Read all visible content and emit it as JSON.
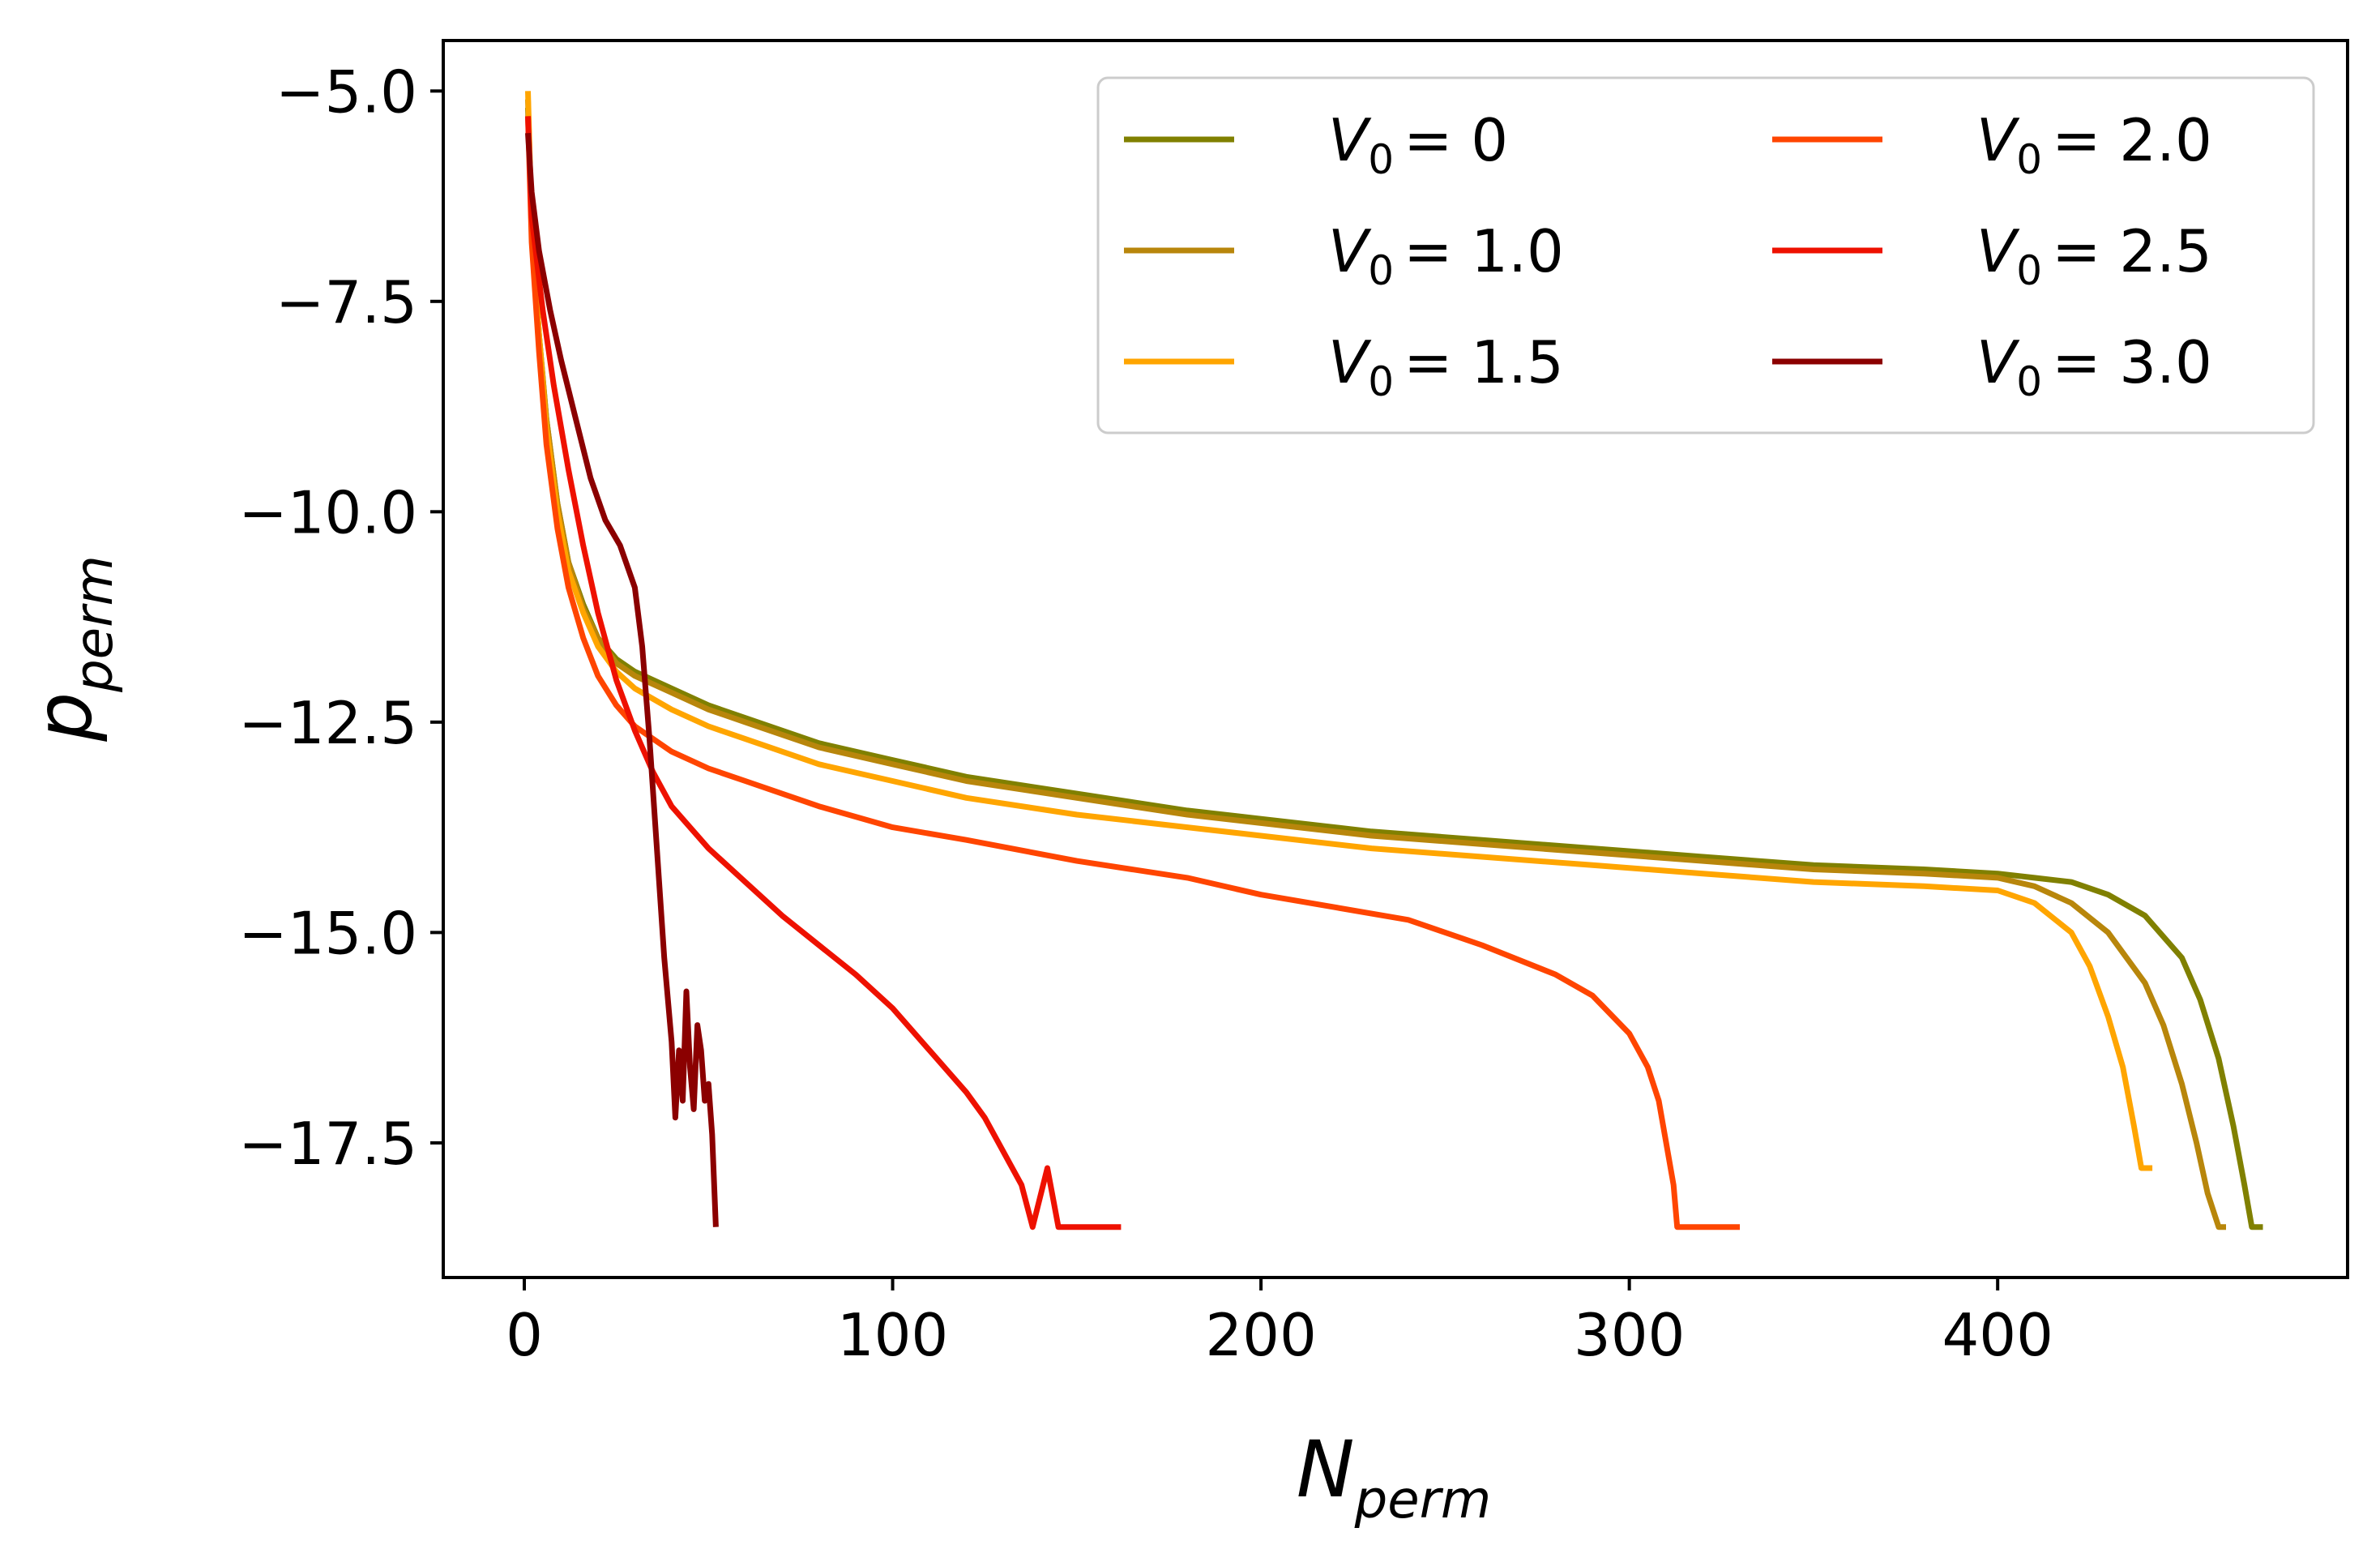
{
  "chart_data": {
    "type": "line",
    "title": "",
    "xlabel": "N",
    "xlabel_sub": "perm",
    "ylabel": "p",
    "ylabel_sub": "perm",
    "xlim": [
      -22,
      495
    ],
    "ylim": [
      -19.1,
      -4.4
    ],
    "xticks": [
      0,
      100,
      200,
      300,
      400
    ],
    "xtick_labels": [
      "0",
      "100",
      "200",
      "300",
      "400"
    ],
    "yticks": [
      -5.0,
      -7.5,
      -10.0,
      -12.5,
      -15.0,
      -17.5
    ],
    "ytick_labels": [
      "−5.0",
      "−7.5",
      "−10.0",
      "−12.5",
      "−15.0",
      "−17.5"
    ],
    "grid": false,
    "legend_position": "top-right",
    "legend_columns": 2,
    "series": [
      {
        "name": "V0 = 0",
        "label_var": "V",
        "label_sub": "0",
        "label_value": "= 0",
        "color": "#808000",
        "points": [
          [
            1,
            -5.2
          ],
          [
            2,
            -6.6
          ],
          [
            4,
            -7.9
          ],
          [
            6,
            -8.9
          ],
          [
            9,
            -9.9
          ],
          [
            12,
            -10.6
          ],
          [
            16,
            -11.1
          ],
          [
            20,
            -11.5
          ],
          [
            25,
            -11.75
          ],
          [
            30,
            -11.9
          ],
          [
            40,
            -12.1
          ],
          [
            50,
            -12.3
          ],
          [
            60,
            -12.45
          ],
          [
            80,
            -12.75
          ],
          [
            100,
            -12.95
          ],
          [
            120,
            -13.15
          ],
          [
            150,
            -13.35
          ],
          [
            180,
            -13.55
          ],
          [
            200,
            -13.65
          ],
          [
            230,
            -13.8
          ],
          [
            260,
            -13.9
          ],
          [
            290,
            -14.0
          ],
          [
            320,
            -14.1
          ],
          [
            350,
            -14.2
          ],
          [
            380,
            -14.25
          ],
          [
            400,
            -14.3
          ],
          [
            410,
            -14.35
          ],
          [
            420,
            -14.4
          ],
          [
            430,
            -14.55
          ],
          [
            440,
            -14.8
          ],
          [
            450,
            -15.3
          ],
          [
            455,
            -15.8
          ],
          [
            460,
            -16.5
          ],
          [
            464,
            -17.3
          ],
          [
            467,
            -18.0
          ],
          [
            469,
            -18.5
          ],
          [
            472,
            -18.5
          ]
        ]
      },
      {
        "name": "V0 = 1.0",
        "label_var": "V",
        "label_sub": "0",
        "label_value": "= 1.0",
        "color": "#b8860b",
        "points": [
          [
            1,
            -5.1
          ],
          [
            2,
            -6.6
          ],
          [
            4,
            -7.9
          ],
          [
            6,
            -8.9
          ],
          [
            9,
            -9.9
          ],
          [
            12,
            -10.6
          ],
          [
            16,
            -11.15
          ],
          [
            20,
            -11.5
          ],
          [
            25,
            -11.8
          ],
          [
            30,
            -11.95
          ],
          [
            40,
            -12.15
          ],
          [
            50,
            -12.35
          ],
          [
            60,
            -12.5
          ],
          [
            80,
            -12.8
          ],
          [
            100,
            -13.0
          ],
          [
            120,
            -13.2
          ],
          [
            150,
            -13.4
          ],
          [
            180,
            -13.6
          ],
          [
            200,
            -13.7
          ],
          [
            230,
            -13.85
          ],
          [
            260,
            -13.95
          ],
          [
            290,
            -14.05
          ],
          [
            320,
            -14.15
          ],
          [
            350,
            -14.25
          ],
          [
            380,
            -14.3
          ],
          [
            400,
            -14.35
          ],
          [
            410,
            -14.45
          ],
          [
            420,
            -14.65
          ],
          [
            430,
            -15.0
          ],
          [
            440,
            -15.6
          ],
          [
            445,
            -16.1
          ],
          [
            450,
            -16.8
          ],
          [
            454,
            -17.5
          ],
          [
            457,
            -18.1
          ],
          [
            460,
            -18.5
          ],
          [
            462,
            -18.5
          ]
        ]
      },
      {
        "name": "V0 = 1.5",
        "label_var": "V",
        "label_sub": "0",
        "label_value": "= 1.5",
        "color": "#ffa500",
        "points": [
          [
            1,
            -5.0
          ],
          [
            2,
            -6.6
          ],
          [
            4,
            -7.9
          ],
          [
            6,
            -9.0
          ],
          [
            9,
            -10.0
          ],
          [
            12,
            -10.7
          ],
          [
            16,
            -11.2
          ],
          [
            20,
            -11.6
          ],
          [
            25,
            -11.9
          ],
          [
            30,
            -12.1
          ],
          [
            40,
            -12.35
          ],
          [
            50,
            -12.55
          ],
          [
            60,
            -12.7
          ],
          [
            80,
            -13.0
          ],
          [
            100,
            -13.2
          ],
          [
            120,
            -13.4
          ],
          [
            150,
            -13.6
          ],
          [
            180,
            -13.75
          ],
          [
            200,
            -13.85
          ],
          [
            230,
            -14.0
          ],
          [
            260,
            -14.1
          ],
          [
            290,
            -14.2
          ],
          [
            320,
            -14.3
          ],
          [
            350,
            -14.4
          ],
          [
            380,
            -14.45
          ],
          [
            400,
            -14.5
          ],
          [
            410,
            -14.65
          ],
          [
            420,
            -15.0
          ],
          [
            425,
            -15.4
          ],
          [
            430,
            -16.0
          ],
          [
            434,
            -16.6
          ],
          [
            437,
            -17.3
          ],
          [
            439,
            -17.8
          ],
          [
            442,
            -17.8
          ]
        ]
      },
      {
        "name": "V0 = 2.0",
        "label_var": "V",
        "label_sub": "0",
        "label_value": "= 2.0",
        "color": "#ff4500",
        "points": [
          [
            1,
            -5.3
          ],
          [
            2,
            -6.8
          ],
          [
            4,
            -8.1
          ],
          [
            6,
            -9.2
          ],
          [
            9,
            -10.2
          ],
          [
            12,
            -10.9
          ],
          [
            16,
            -11.5
          ],
          [
            20,
            -11.95
          ],
          [
            25,
            -12.3
          ],
          [
            30,
            -12.55
          ],
          [
            40,
            -12.85
          ],
          [
            50,
            -13.05
          ],
          [
            60,
            -13.2
          ],
          [
            80,
            -13.5
          ],
          [
            100,
            -13.75
          ],
          [
            120,
            -13.9
          ],
          [
            150,
            -14.15
          ],
          [
            180,
            -14.35
          ],
          [
            200,
            -14.55
          ],
          [
            220,
            -14.7
          ],
          [
            240,
            -14.85
          ],
          [
            260,
            -15.15
          ],
          [
            280,
            -15.5
          ],
          [
            290,
            -15.75
          ],
          [
            300,
            -16.2
          ],
          [
            305,
            -16.6
          ],
          [
            308,
            -17.0
          ],
          [
            310,
            -17.5
          ],
          [
            312,
            -18.0
          ],
          [
            313,
            -18.5
          ],
          [
            320,
            -18.5
          ],
          [
            330,
            -18.5
          ]
        ]
      },
      {
        "name": "V0 = 2.5",
        "label_var": "V",
        "label_sub": "0",
        "label_value": "= 2.5",
        "color": "#ee1100",
        "points": [
          [
            1,
            -5.3
          ],
          [
            2,
            -6.5
          ],
          [
            5,
            -7.6
          ],
          [
            8,
            -8.5
          ],
          [
            12,
            -9.5
          ],
          [
            16,
            -10.4
          ],
          [
            20,
            -11.2
          ],
          [
            25,
            -12.0
          ],
          [
            30,
            -12.6
          ],
          [
            35,
            -13.1
          ],
          [
            40,
            -13.5
          ],
          [
            50,
            -14.0
          ],
          [
            60,
            -14.4
          ],
          [
            70,
            -14.8
          ],
          [
            80,
            -15.15
          ],
          [
            90,
            -15.5
          ],
          [
            100,
            -15.9
          ],
          [
            110,
            -16.4
          ],
          [
            120,
            -16.9
          ],
          [
            125,
            -17.2
          ],
          [
            130,
            -17.6
          ],
          [
            135,
            -18.0
          ],
          [
            138,
            -18.5
          ],
          [
            142,
            -17.8
          ],
          [
            145,
            -18.5
          ],
          [
            150,
            -18.5
          ],
          [
            162,
            -18.5
          ]
        ]
      },
      {
        "name": "V0 = 3.0",
        "label_var": "V",
        "label_sub": "0",
        "label_value": "= 3.0",
        "color": "#8b0000",
        "points": [
          [
            1,
            -5.5
          ],
          [
            2,
            -6.2
          ],
          [
            4,
            -6.9
          ],
          [
            7,
            -7.6
          ],
          [
            10,
            -8.2
          ],
          [
            14,
            -8.9
          ],
          [
            18,
            -9.6
          ],
          [
            22,
            -10.1
          ],
          [
            26,
            -10.4
          ],
          [
            30,
            -10.9
          ],
          [
            32,
            -11.6
          ],
          [
            34,
            -12.7
          ],
          [
            36,
            -14.0
          ],
          [
            38,
            -15.3
          ],
          [
            40,
            -16.3
          ],
          [
            41,
            -17.2
          ],
          [
            42,
            -16.4
          ],
          [
            43,
            -17.0
          ],
          [
            44,
            -15.7
          ],
          [
            45,
            -16.6
          ],
          [
            46,
            -17.1
          ],
          [
            47,
            -16.1
          ],
          [
            48,
            -16.4
          ],
          [
            49,
            -17.0
          ],
          [
            50,
            -16.8
          ],
          [
            51,
            -17.4
          ],
          [
            52,
            -18.5
          ]
        ]
      }
    ]
  }
}
